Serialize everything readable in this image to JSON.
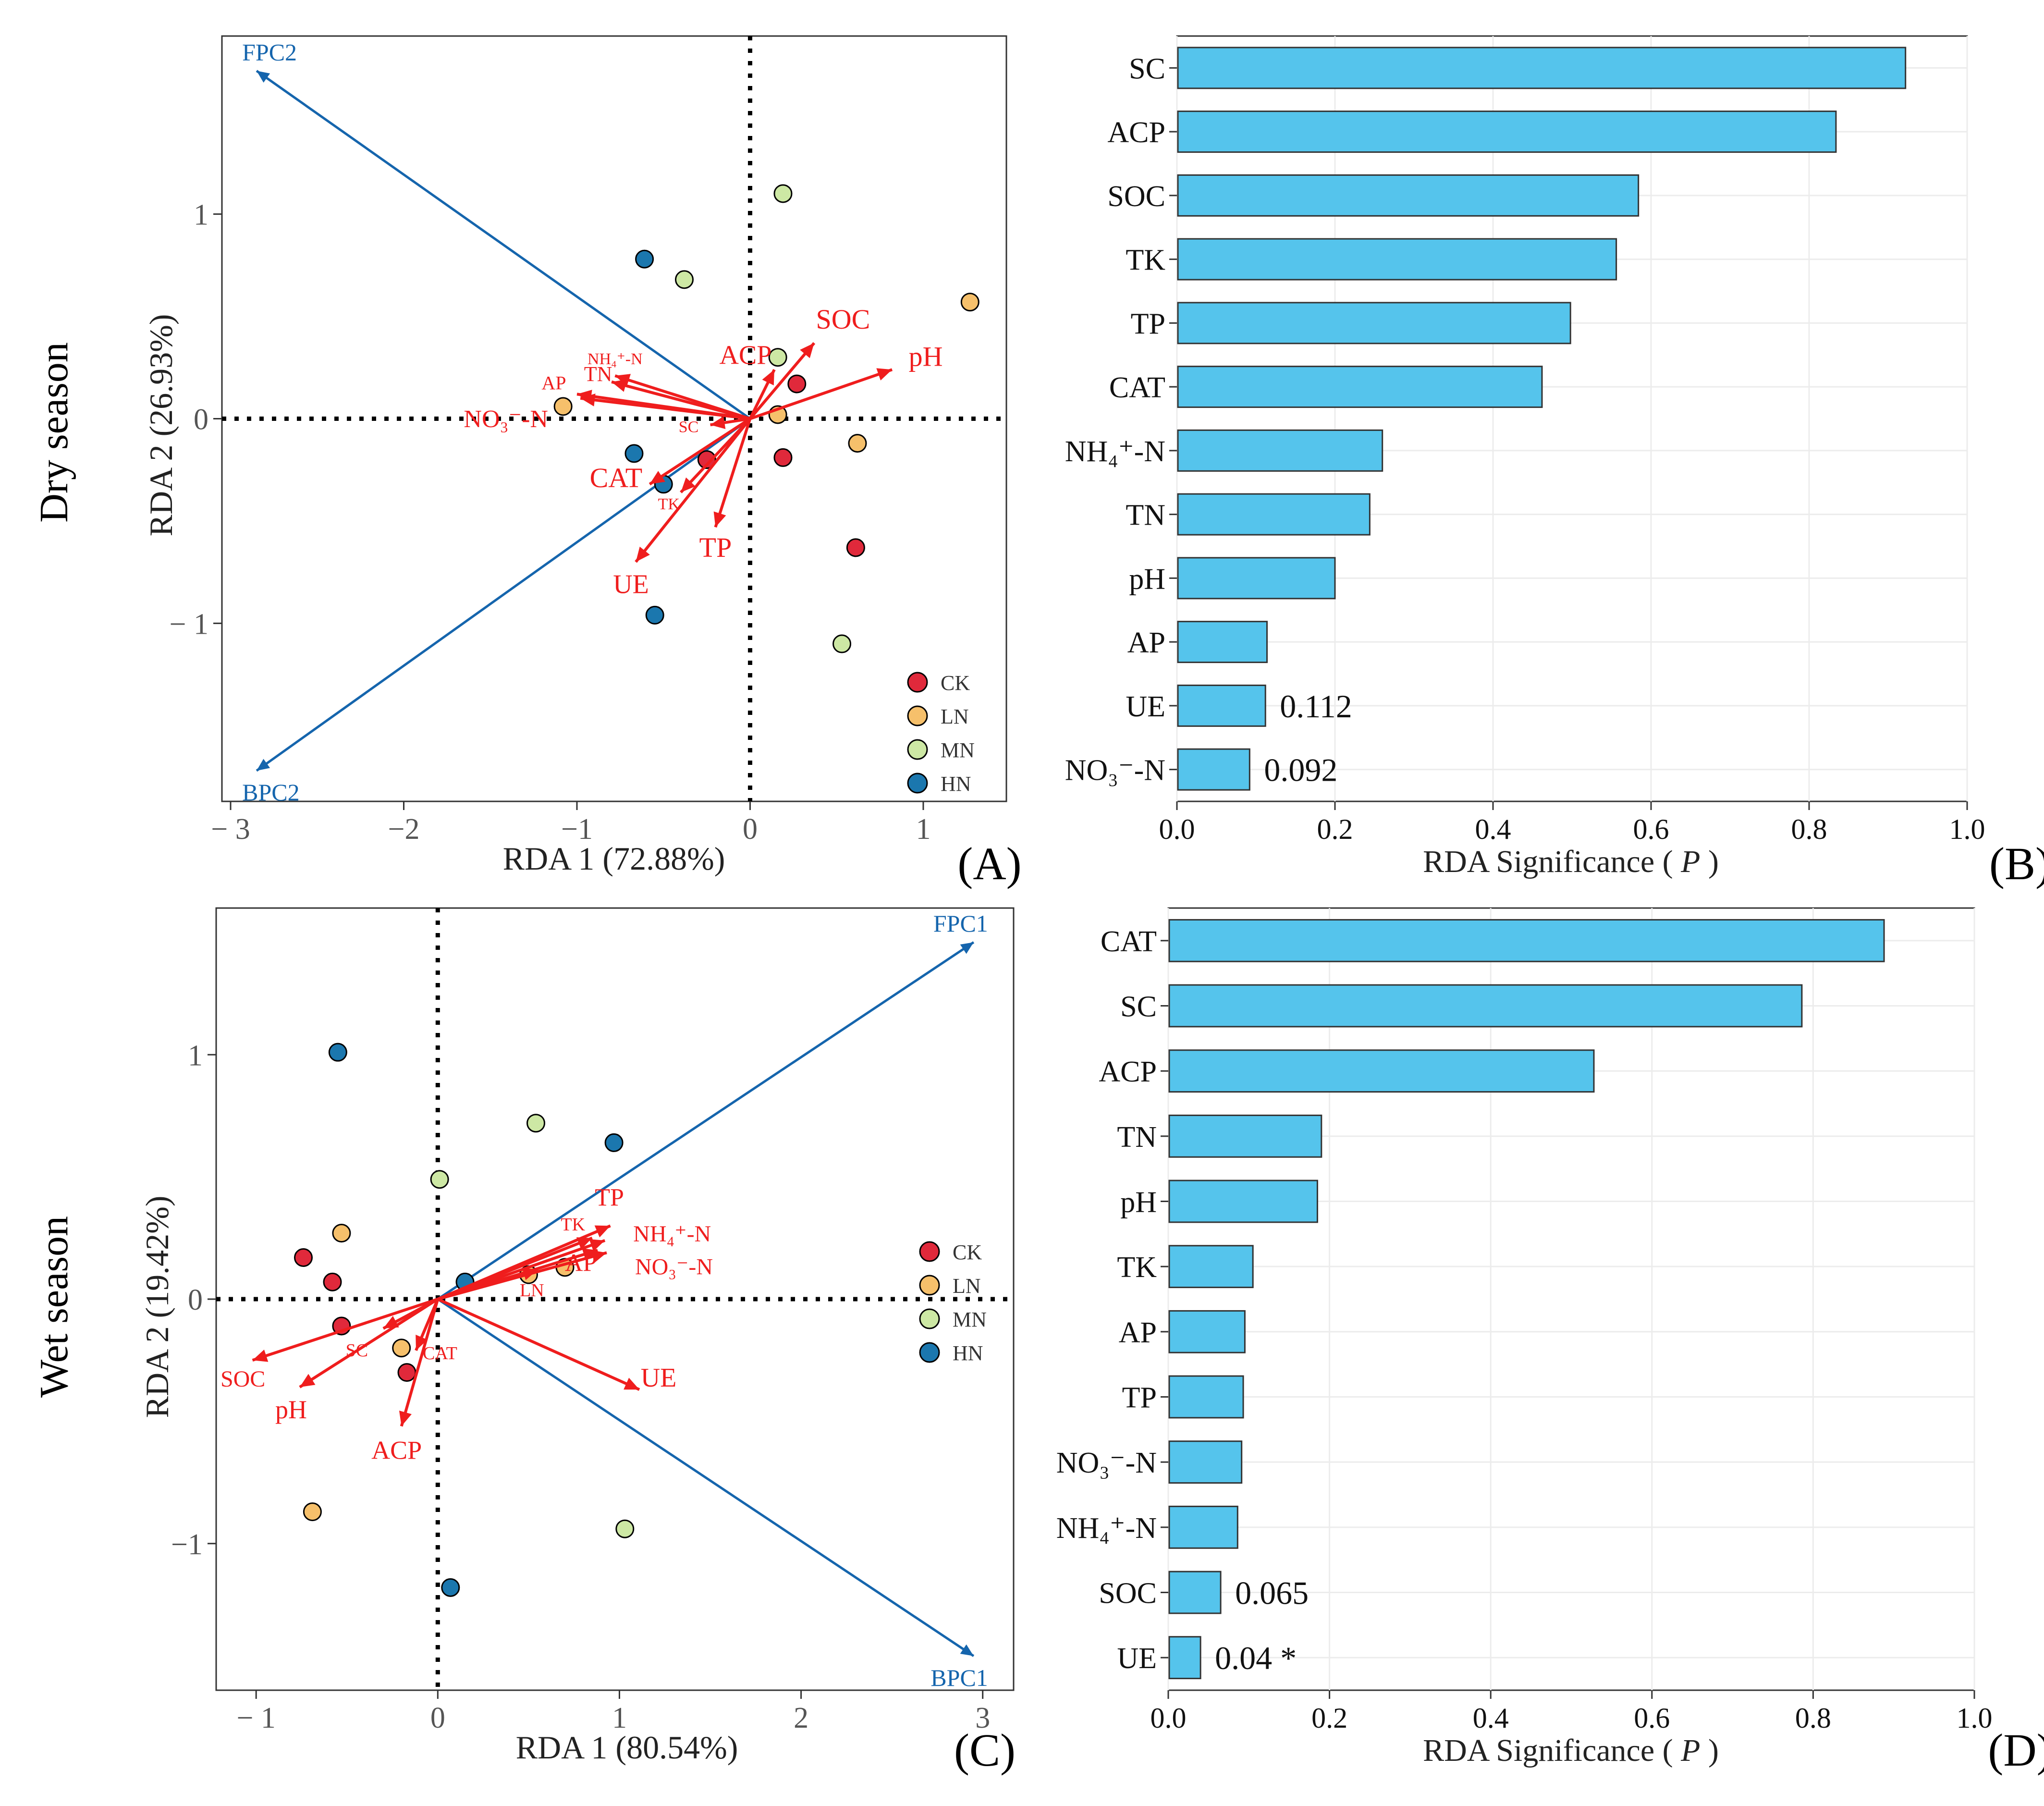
{
  "season_labels": {
    "dry": "Dry season",
    "wet": "Wet season"
  },
  "chart_data": [
    {
      "id": "A",
      "panel_label": "(A)",
      "type": "scatter",
      "subtype": "rda-biplot",
      "xlabel": "RDA  1  (72.88%)",
      "ylabel": "RDA 2 (26.93%)",
      "xlim": [
        -3.05,
        1.48
      ],
      "ylim": [
        -1.87,
        1.87
      ],
      "xticks": [
        -3,
        -2,
        -1,
        0,
        1
      ],
      "yticks": [
        -1,
        0,
        1
      ],
      "tick_labels_x": [
        "− 3",
        "−2",
        "−1",
        "0",
        "1"
      ],
      "tick_labels_y": [
        "− 1",
        "0",
        "1"
      ],
      "groups": [
        {
          "name": "CK",
          "color": "#e0293b",
          "points": [
            [
              0.27,
              0.17
            ],
            [
              -0.25,
              -0.2
            ],
            [
              0.19,
              -0.19
            ],
            [
              0.61,
              -0.63
            ]
          ]
        },
        {
          "name": "LN",
          "color": "#f6c06b",
          "points": [
            [
              1.27,
              0.57
            ],
            [
              -1.08,
              0.06
            ],
            [
              0.16,
              0.02
            ],
            [
              0.62,
              -0.12
            ]
          ]
        },
        {
          "name": "MN",
          "color": "#cde8a4",
          "points": [
            [
              0.19,
              1.1
            ],
            [
              -0.38,
              0.68
            ],
            [
              0.16,
              0.3
            ],
            [
              0.53,
              -1.1
            ]
          ]
        },
        {
          "name": "HN",
          "color": "#1b77ae",
          "points": [
            [
              -0.61,
              0.78
            ],
            [
              -0.67,
              -0.17
            ],
            [
              -0.5,
              -0.32
            ],
            [
              -0.55,
              -0.96
            ]
          ]
        }
      ],
      "species_vectors": [
        {
          "label": "FPC2",
          "x": -2.85,
          "y": 1.7
        },
        {
          "label": "BPC2",
          "x": -2.85,
          "y": -1.72
        }
      ],
      "env_vectors": [
        {
          "label": "SOC",
          "x": 0.37,
          "y": 0.37
        },
        {
          "label": "pH",
          "x": 0.82,
          "y": 0.24
        },
        {
          "label": "ACP",
          "x": 0.14,
          "y": 0.24
        },
        {
          "label": "NH₄⁺-N",
          "x": -0.78,
          "y": 0.21
        },
        {
          "label": "TN",
          "x": -0.8,
          "y": 0.18
        },
        {
          "label": "AP",
          "x": -1.0,
          "y": 0.12
        },
        {
          "label": "NO₃⁻-N",
          "x": -0.98,
          "y": 0.1
        },
        {
          "label": "SC",
          "x": -0.23,
          "y": -0.03
        },
        {
          "label": "CAT",
          "x": -0.58,
          "y": -0.32
        },
        {
          "label": "TK",
          "x": -0.4,
          "y": -0.36
        },
        {
          "label": "TP",
          "x": -0.2,
          "y": -0.53
        },
        {
          "label": "UE",
          "x": -0.66,
          "y": -0.7
        }
      ],
      "legend": [
        "CK",
        "LN",
        "MN",
        "HN"
      ]
    },
    {
      "id": "B",
      "panel_label": "(B)",
      "type": "bar",
      "orientation": "horizontal",
      "xlabel": "RDA Significance ( ",
      "xlabel_italic": "P",
      "xlabel_end": " )",
      "xlim": [
        0,
        1.0
      ],
      "xticks": [
        0,
        0.2,
        0.4,
        0.6,
        0.8,
        1.0
      ],
      "tick_labels_x": [
        "0.0",
        "0.2",
        "0.4",
        "0.6",
        "0.8",
        "1.0"
      ],
      "bar_color": "#55c4ec",
      "categories": [
        "SC",
        "ACP",
        "SOC",
        "TK",
        "TP",
        "CAT",
        "NH₄⁺-N",
        "TN",
        "pH",
        "AP",
        "UE",
        "NO₃⁻-N"
      ],
      "values": [
        0.922,
        0.834,
        0.584,
        0.556,
        0.498,
        0.462,
        0.26,
        0.244,
        0.2,
        0.114,
        0.112,
        0.092
      ],
      "value_labels": [
        "",
        "",
        "",
        "",
        "",
        "",
        "",
        "",
        "",
        "",
        "0.112",
        "0.092"
      ]
    },
    {
      "id": "C",
      "panel_label": "(C)",
      "type": "scatter",
      "subtype": "rda-biplot",
      "xlabel": "RDA 1 (80.54%)",
      "ylabel": "RDA  2  (19.42%)",
      "xlim": [
        -1.22,
        3.17
      ],
      "ylim": [
        -1.6,
        1.6
      ],
      "xticks": [
        -1,
        0,
        1,
        2,
        3
      ],
      "yticks": [
        -1,
        0,
        1
      ],
      "tick_labels_x": [
        "− 1",
        "0",
        "1",
        "2",
        "3"
      ],
      "tick_labels_y": [
        "−1",
        "0",
        "1"
      ],
      "groups": [
        {
          "name": "CK",
          "color": "#e0293b",
          "points": [
            [
              -0.74,
              0.17
            ],
            [
              -0.58,
              0.07
            ],
            [
              -0.53,
              -0.11
            ],
            [
              -0.17,
              -0.3
            ]
          ]
        },
        {
          "name": "LN",
          "color": "#f6c06b",
          "points": [
            [
              -0.53,
              0.27
            ],
            [
              0.5,
              0.1
            ],
            [
              0.7,
              0.13
            ],
            [
              -0.2,
              -0.2
            ],
            [
              -0.69,
              -0.87
            ]
          ]
        },
        {
          "name": "MN",
          "color": "#cde8a4",
          "points": [
            [
              0.54,
              0.72
            ],
            [
              0.01,
              0.49
            ],
            [
              1.03,
              -0.94
            ]
          ]
        },
        {
          "name": "HN",
          "color": "#1b77ae",
          "points": [
            [
              -0.55,
              1.01
            ],
            [
              0.97,
              0.64
            ],
            [
              0.15,
              0.07
            ],
            [
              0.07,
              -1.18
            ]
          ]
        }
      ],
      "species_vectors": [
        {
          "label": "FPC1",
          "x": 2.95,
          "y": 1.46
        },
        {
          "label": "BPC1",
          "x": 2.95,
          "y": -1.46
        }
      ],
      "env_vectors": [
        {
          "label": "TP",
          "x": 0.95,
          "y": 0.3
        },
        {
          "label": "TK",
          "x": 0.85,
          "y": 0.25
        },
        {
          "label": "NH₄⁺-N",
          "x": 0.92,
          "y": 0.24
        },
        {
          "label": "LN",
          "x": 0.55,
          "y": 0.12
        },
        {
          "label": "AP",
          "x": 0.88,
          "y": 0.2
        },
        {
          "label": "NO₃⁻-N",
          "x": 0.93,
          "y": 0.19
        },
        {
          "label": "UE",
          "x": 1.11,
          "y": -0.37
        },
        {
          "label": "CAT",
          "x": -0.12,
          "y": -0.21
        },
        {
          "label": "SC",
          "x": -0.3,
          "y": -0.12
        },
        {
          "label": "SOC",
          "x": -1.02,
          "y": -0.25
        },
        {
          "label": "pH",
          "x": -0.76,
          "y": -0.36
        },
        {
          "label": "ACP",
          "x": -0.2,
          "y": -0.52
        }
      ],
      "legend": [
        "CK",
        "LN",
        "MN",
        "HN"
      ]
    },
    {
      "id": "D",
      "panel_label": "(D)",
      "type": "bar",
      "orientation": "horizontal",
      "xlabel": "RDA Significance ( ",
      "xlabel_italic": "P",
      "xlabel_end": " )",
      "xlim": [
        0,
        1.0
      ],
      "xticks": [
        0,
        0.2,
        0.4,
        0.6,
        0.8,
        1.0
      ],
      "tick_labels_x": [
        "0.0",
        "0.2",
        "0.4",
        "0.6",
        "0.8",
        "1.0"
      ],
      "bar_color": "#55c4ec",
      "categories": [
        "CAT",
        "SC",
        "ACP",
        "TN",
        "pH",
        "TK",
        "AP",
        "TP",
        "NO₃⁻-N",
        "NH₄⁺-N",
        "SOC",
        "UE"
      ],
      "values": [
        0.888,
        0.786,
        0.528,
        0.19,
        0.185,
        0.105,
        0.095,
        0.093,
        0.091,
        0.086,
        0.065,
        0.04
      ],
      "value_labels": [
        "",
        "",
        "",
        "",
        "",
        "",
        "",
        "",
        "",
        "",
        "0.065",
        "0.04 *"
      ]
    }
  ]
}
